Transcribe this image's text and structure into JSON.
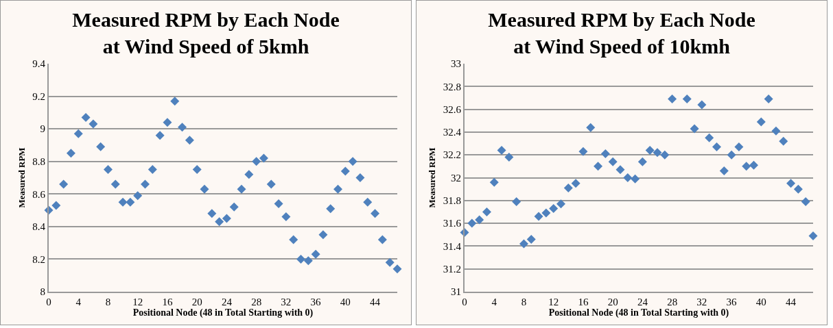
{
  "chart_data": [
    {
      "type": "scatter",
      "title": "Measured RPM by Each Node\nat Wind Speed of 5kmh",
      "xlabel": "Positional Node (48 in Total Starting with 0)",
      "ylabel": "Measured RPM",
      "marker": "diamond",
      "grid": "y",
      "legend": false,
      "x": [
        0,
        1,
        2,
        3,
        4,
        5,
        6,
        7,
        8,
        9,
        10,
        11,
        12,
        13,
        14,
        15,
        16,
        17,
        18,
        19,
        20,
        21,
        22,
        23,
        24,
        25,
        26,
        27,
        28,
        29,
        30,
        31,
        32,
        33,
        34,
        35,
        36,
        37,
        38,
        39,
        40,
        41,
        42,
        43,
        44,
        45,
        46,
        47
      ],
      "series": [
        {
          "color": "#4f81bd",
          "values": [
            8.5,
            8.53,
            8.66,
            8.85,
            8.97,
            9.07,
            9.03,
            8.89,
            8.75,
            8.66,
            8.55,
            8.55,
            8.59,
            8.66,
            8.75,
            8.96,
            9.04,
            9.17,
            9.01,
            8.93,
            8.75,
            8.63,
            8.48,
            8.43,
            8.45,
            8.52,
            8.63,
            8.72,
            8.8,
            8.82,
            8.66,
            8.54,
            8.46,
            8.32,
            8.2,
            8.19,
            8.23,
            8.35,
            8.51,
            8.63,
            8.74,
            8.8,
            8.7,
            8.55,
            8.48,
            8.32,
            8.18,
            8.14
          ]
        }
      ],
      "xlim": [
        0,
        47
      ],
      "xticks": [
        0,
        4,
        8,
        12,
        16,
        20,
        24,
        28,
        32,
        36,
        40,
        44
      ],
      "ylim": [
        8,
        9.4
      ],
      "yticks": [
        8,
        8.2,
        8.4,
        8.6,
        8.8,
        9,
        9.2,
        9.4
      ]
    },
    {
      "type": "scatter",
      "title": "Measured RPM by Each Node\nat Wind Speed of 10kmh",
      "xlabel": "Positional Node (48 in Total Starting with 0)",
      "ylabel": "Measured RPM",
      "marker": "diamond",
      "grid": "y",
      "legend": false,
      "x": [
        0,
        1,
        2,
        3,
        4,
        5,
        6,
        7,
        8,
        9,
        10,
        11,
        12,
        13,
        14,
        15,
        16,
        17,
        18,
        19,
        20,
        21,
        22,
        23,
        24,
        25,
        26,
        27,
        28,
        29,
        30,
        31,
        32,
        33,
        34,
        35,
        36,
        37,
        38,
        39,
        40,
        41,
        42,
        43,
        44,
        45,
        46,
        47
      ],
      "series": [
        {
          "color": "#4f81bd",
          "values": [
            31.52,
            31.6,
            31.63,
            31.7,
            31.96,
            32.24,
            32.18,
            31.79,
            31.42,
            31.46,
            31.66,
            31.69,
            31.73,
            31.77,
            31.91,
            31.95,
            32.23,
            32.44,
            32.1,
            32.21,
            32.14,
            32.07,
            32.0,
            31.99,
            32.14,
            32.24,
            32.22,
            32.2,
            32.69,
            null,
            32.69,
            32.43,
            32.64,
            32.35,
            32.27,
            32.06,
            32.2,
            32.27,
            32.1,
            32.11,
            32.49,
            32.69,
            32.41,
            32.32,
            31.95,
            31.9,
            31.79,
            31.49
          ]
        }
      ],
      "xlim": [
        0,
        47
      ],
      "xticks": [
        0,
        4,
        8,
        12,
        16,
        20,
        24,
        28,
        32,
        36,
        40,
        44
      ],
      "ylim": [
        31,
        33
      ],
      "yticks": [
        31,
        31.2,
        31.4,
        31.6,
        31.8,
        32,
        32.2,
        32.4,
        32.6,
        32.8,
        33
      ]
    }
  ]
}
